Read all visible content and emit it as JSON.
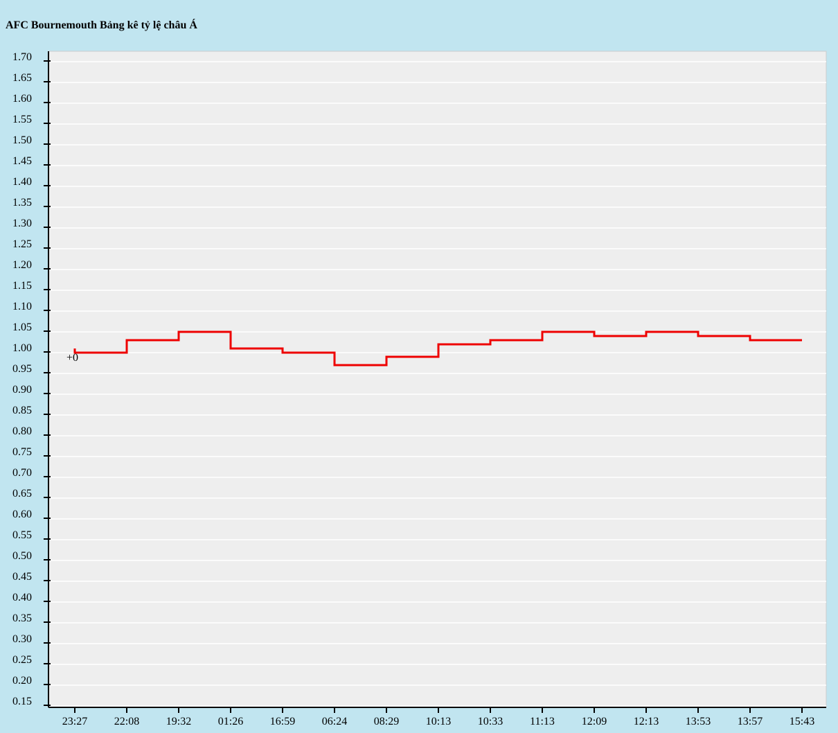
{
  "chart_data": {
    "type": "line",
    "title": "AFC Bournemouth Bảng kê tỷ lệ châu Á",
    "x": [
      "23:27",
      "22:08",
      "19:32",
      "01:26",
      "16:59",
      "06:24",
      "08:29",
      "10:13",
      "10:33",
      "11:13",
      "12:09",
      "12:13",
      "13:53",
      "13:57",
      "15:43"
    ],
    "series": [
      {
        "values": [
          1.0,
          1.03,
          1.05,
          1.01,
          1.0,
          0.97,
          0.99,
          1.02,
          1.03,
          1.05,
          1.04,
          1.05,
          1.04,
          1.03,
          1.03
        ]
      }
    ],
    "first_value_marker": 1.01,
    "annotation": "+0",
    "ylim": [
      0.15,
      1.7
    ],
    "ytick_step": 0.05,
    "line_style": "step",
    "grid": true,
    "colors": {
      "line": "#ee0000",
      "plot_bg": "#eeeeee",
      "page_bg": "#c1e5f0",
      "grid": "#ffffff"
    }
  }
}
